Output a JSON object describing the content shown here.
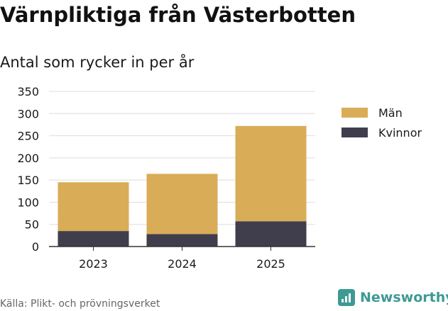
{
  "chart_data": {
    "type": "bar",
    "stacked": true,
    "title": "Värnpliktiga från Västerbotten",
    "subtitle": "Antal som rycker in per år",
    "categories": [
      "2023",
      "2024",
      "2025"
    ],
    "series": [
      {
        "name": "Kvinnor",
        "color": "#403e4d",
        "values": [
          35,
          28,
          57
        ]
      },
      {
        "name": "Män",
        "color": "#d9ac58",
        "values": [
          110,
          136,
          215
        ]
      }
    ],
    "ylim": [
      0,
      350
    ],
    "yticks": [
      0,
      50,
      100,
      150,
      200,
      250,
      300,
      350
    ],
    "grid": true,
    "legend_position": "right"
  },
  "legend": {
    "items": [
      {
        "label": "Män",
        "color": "#d9ac58"
      },
      {
        "label": "Kvinnor",
        "color": "#403e4d"
      }
    ]
  },
  "footer": {
    "source": "Källa: Plikt- och prövningsverket",
    "brand": "Newsworthy",
    "brand_color": "#3e9a93"
  }
}
